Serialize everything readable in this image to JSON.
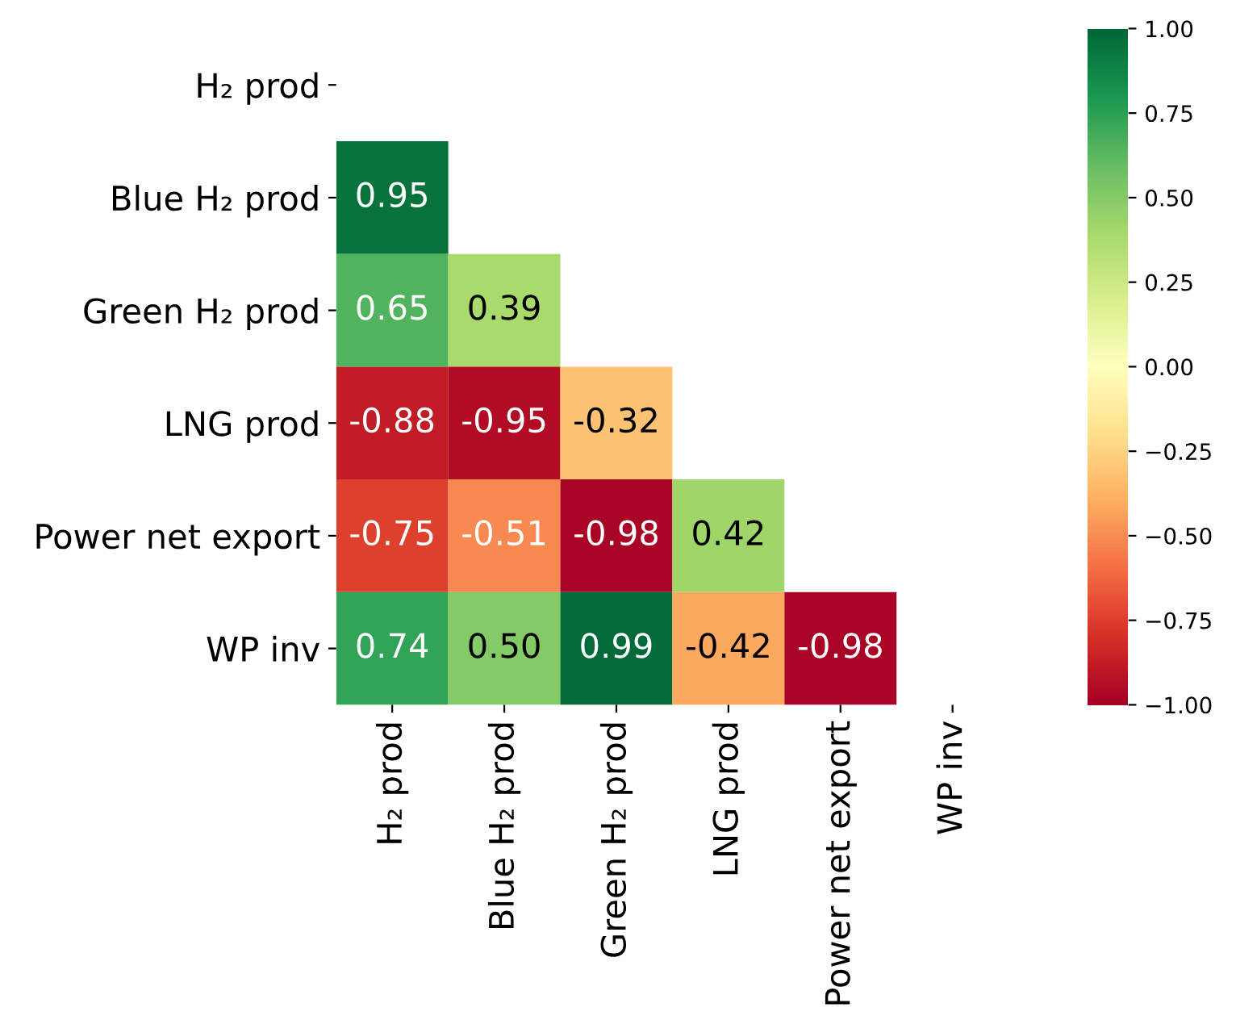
{
  "chart_data": {
    "type": "heatmap",
    "categories": [
      "H₂ prod",
      "Blue H₂ prod",
      "Green H₂ prod",
      "LNG prod",
      "Power net export",
      "WP inv"
    ],
    "y_categories": [
      "H₂ prod",
      "Blue H₂ prod",
      "Green H₂ prod",
      "LNG prod",
      "Power net export",
      "WP inv"
    ],
    "cells": [
      [
        null,
        null,
        null,
        null,
        null,
        null
      ],
      [
        0.95,
        null,
        null,
        null,
        null,
        null
      ],
      [
        0.65,
        0.39,
        null,
        null,
        null,
        null
      ],
      [
        -0.88,
        -0.95,
        -0.32,
        null,
        null,
        null
      ],
      [
        -0.75,
        -0.51,
        -0.98,
        0.42,
        null,
        null
      ],
      [
        0.74,
        0.5,
        0.99,
        -0.42,
        -0.98,
        null
      ]
    ],
    "cell_labels": [
      [
        null,
        null,
        null,
        null,
        null,
        null
      ],
      [
        "0.95",
        null,
        null,
        null,
        null,
        null
      ],
      [
        "0.65",
        "0.39",
        null,
        null,
        null,
        null
      ],
      [
        "-0.88",
        "-0.95",
        "-0.32",
        null,
        null,
        null
      ],
      [
        "-0.75",
        "-0.51",
        "-0.98",
        "0.42",
        null,
        null
      ],
      [
        "0.74",
        "0.50",
        "0.99",
        "-0.42",
        "-0.98",
        null
      ]
    ],
    "clim": [
      -1,
      1
    ],
    "cticks": [
      {
        "value": -1,
        "label": "−1.00"
      },
      {
        "value": -0.75,
        "label": "−0.75"
      },
      {
        "value": -0.5,
        "label": "−0.50"
      },
      {
        "value": -0.25,
        "label": "−0.25"
      },
      {
        "value": 0,
        "label": "0.00"
      },
      {
        "value": 0.25,
        "label": "0.25"
      },
      {
        "value": 0.5,
        "label": "0.50"
      },
      {
        "value": 0.75,
        "label": "0.75"
      },
      {
        "value": 1,
        "label": "1.00"
      }
    ]
  }
}
